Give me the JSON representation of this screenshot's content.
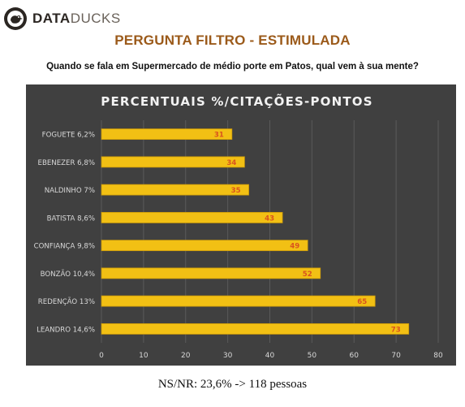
{
  "logo": {
    "brand_bold": "DATA",
    "brand_light": "DUCKS",
    "icon": "duck-circle-icon"
  },
  "header": {
    "title": "PERGUNTA FILTRO - ESTIMULADA",
    "subtitle": "Quando se fala em Supermercado de médio porte em Patos, qual vem à sua mente?"
  },
  "footer": {
    "note": "NS/NR: 23,6% -> 118 pessoas"
  },
  "colors": {
    "bar": "#f2c014",
    "bar_stroke": "#c9980a",
    "value_label": "#d9531e",
    "chart_bg": "#404040",
    "grid": "#5a5a5a",
    "axis_text": "#d8d8d8",
    "title_accent": "#9b5a1a"
  },
  "chart_data": {
    "type": "bar",
    "orientation": "horizontal",
    "title": "PERCENTUAIS %/CITAÇÕES-PONTOS",
    "categories": [
      "FOGUETE 6,2%",
      "EBENEZER  6,8%",
      "NALDINHO 7%",
      "BATISTA 8,6%",
      "CONFIANÇA 9,8%",
      "BONZÃO 10,4%",
      "REDENÇÃO 13%",
      "LEANDRO 14,6%"
    ],
    "values": [
      31,
      34,
      35,
      43,
      49,
      52,
      65,
      73
    ],
    "xlim": [
      0,
      80
    ],
    "xticks": [
      0,
      10,
      20,
      30,
      40,
      50,
      60,
      70,
      80
    ],
    "grid": true,
    "legend": "none"
  }
}
